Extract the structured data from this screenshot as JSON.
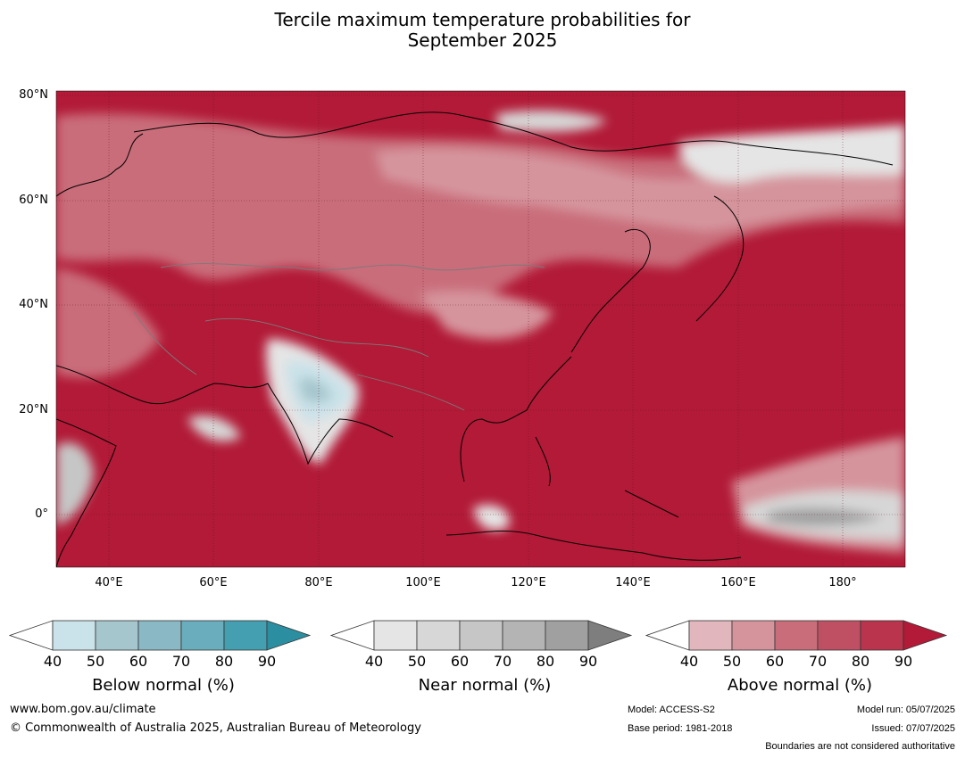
{
  "title": {
    "line1": "Tercile maximum temperature probabilities for",
    "line2": "September 2025"
  },
  "map": {
    "lat_labels": [
      "80°N",
      "60°N",
      "40°N",
      "20°N",
      "0°"
    ],
    "lon_labels": [
      "40°E",
      "60°E",
      "80°E",
      "100°E",
      "120°E",
      "140°E",
      "160°E",
      "180°"
    ],
    "background_color": "#b21a37"
  },
  "legend": {
    "below": {
      "title": "Below normal (%)",
      "ticks": [
        "40",
        "50",
        "60",
        "70",
        "80",
        "90"
      ],
      "colors": [
        "#ffffff",
        "#cae2e9",
        "#a6c6cd",
        "#8ab8c4",
        "#6aadbc",
        "#44a0b1",
        "#2b8fa1"
      ]
    },
    "near": {
      "title": "Near normal (%)",
      "ticks": [
        "40",
        "50",
        "60",
        "70",
        "80",
        "90"
      ],
      "colors": [
        "#ffffff",
        "#e5e5e5",
        "#d7d7d7",
        "#c6c6c6",
        "#b4b4b4",
        "#a0a0a0",
        "#7e7e7e"
      ]
    },
    "above": {
      "title": "Above normal (%)",
      "ticks": [
        "40",
        "50",
        "60",
        "70",
        "80",
        "90"
      ],
      "colors": [
        "#ffffff",
        "#e1b7bd",
        "#d5949c",
        "#c96d7a",
        "#bf5064",
        "#b9344c",
        "#b21a37"
      ]
    }
  },
  "footer": {
    "website": "www.bom.gov.au/climate",
    "copyright": "© Commonwealth of Australia 2025, Australian Bureau of Meteorology",
    "model": "Model: ACCESS-S2",
    "base_period": "Base period: 1981-2018",
    "model_run": "Model run: 05/07/2025",
    "issued": "Issued: 07/07/2025",
    "disclaimer": "Boundaries are not considered authoritative"
  }
}
